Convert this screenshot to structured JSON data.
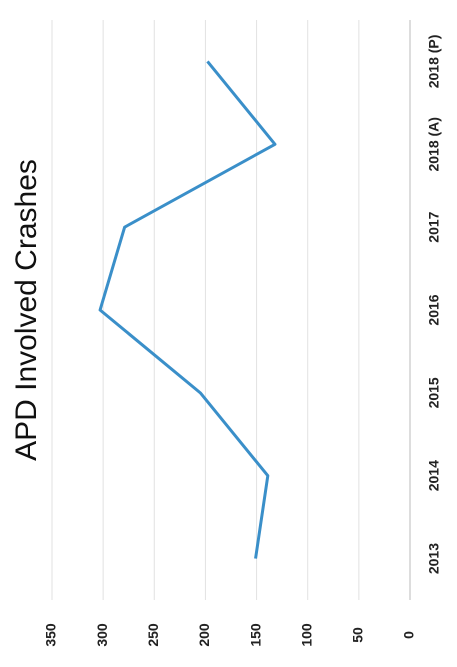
{
  "chart_data": {
    "type": "line",
    "title": "APD Involved Crashes",
    "categories": [
      "2013",
      "2014",
      "2015",
      "2016",
      "2017",
      "2018 (A)",
      "2018 (P)"
    ],
    "values": [
      151,
      139,
      205,
      303,
      279,
      132,
      198
    ],
    "color": "#3a8fc9",
    "ylim": [
      0,
      350
    ],
    "yticks": [
      0,
      50,
      100,
      150,
      200,
      250,
      300,
      350
    ],
    "grid": true
  }
}
